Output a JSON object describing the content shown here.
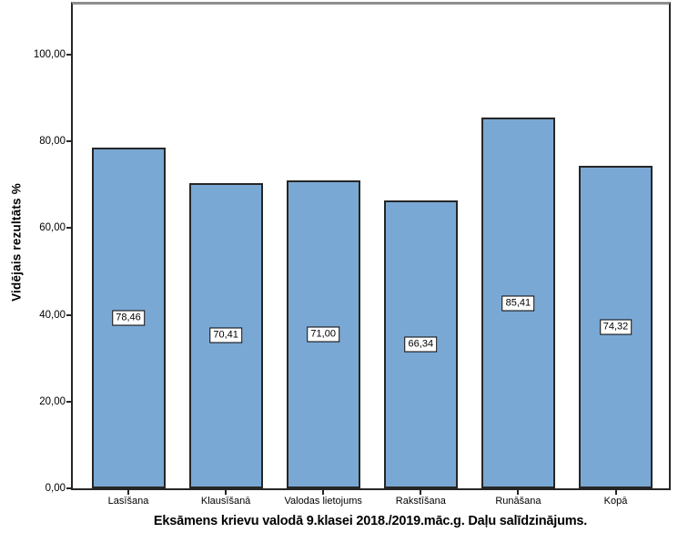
{
  "chart_data": {
    "type": "bar",
    "title": "Eksāmens krievu valodā 9.klasei 2018./2019.māc.g. Daļu salīdzinājums.",
    "ylabel": "Vidējais rezultāts %",
    "xlabel": "",
    "categories": [
      "Lasīšana",
      "Klausīšanā",
      "Valodas lietojums",
      "Rakstīšana",
      "Runāšana",
      "Kopā"
    ],
    "values": [
      78.46,
      70.41,
      71.0,
      66.34,
      85.41,
      74.32
    ],
    "value_labels": [
      "78,46",
      "70,41",
      "71,00",
      "66,34",
      "85,41",
      "74,32"
    ],
    "y_ticks": [
      {
        "value": 0,
        "label": "0,00"
      },
      {
        "value": 20,
        "label": "20,00"
      },
      {
        "value": 40,
        "label": "40,00"
      },
      {
        "value": 60,
        "label": "60,00"
      },
      {
        "value": 80,
        "label": "80,00"
      },
      {
        "value": 100,
        "label": "100,00"
      }
    ],
    "ylim": [
      0,
      111.5
    ],
    "grid": false,
    "legend": "none",
    "bar_color": "#7aa8d4",
    "bar_border_color": "#262626",
    "frame_top_color": "#8e8e8e",
    "value_label_style": "boxed-white-centered-in-bar"
  }
}
